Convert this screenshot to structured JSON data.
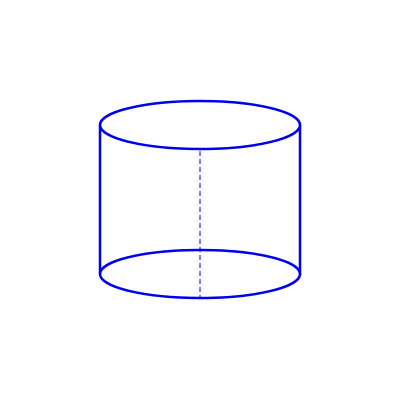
{
  "diagram": {
    "shape": "cylinder",
    "stroke_color": "#0000ee",
    "background_color": "#ffffff",
    "axis_style": "dashed"
  }
}
